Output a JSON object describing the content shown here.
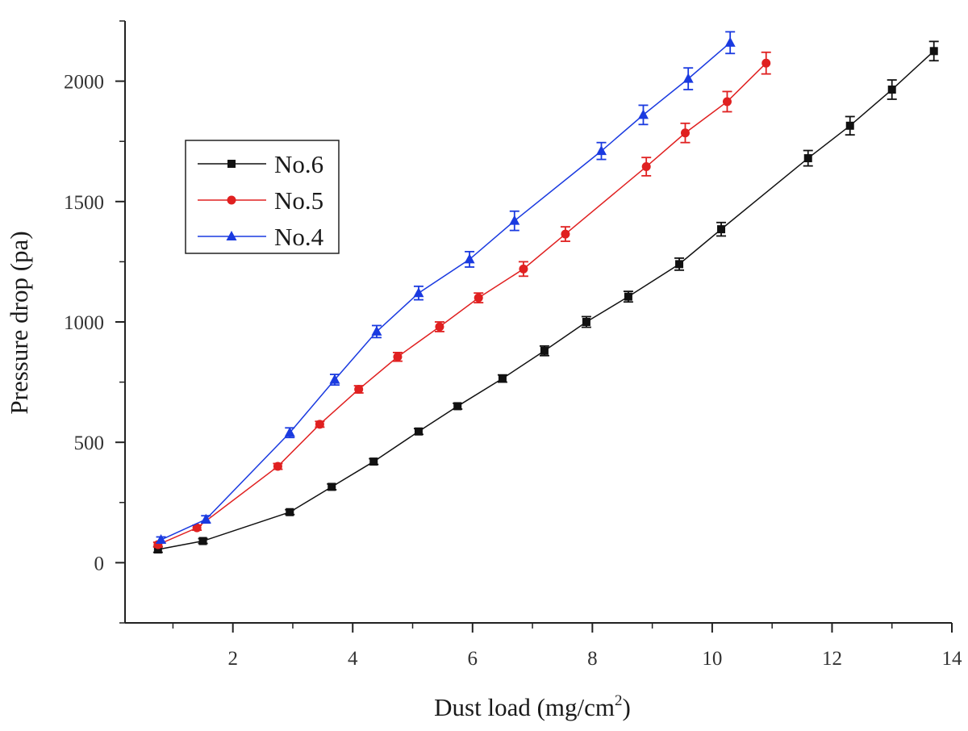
{
  "chart_data": {
    "type": "line",
    "title": "",
    "xlabel_main": "Dust load (mg/cm",
    "xlabel_sup": "2",
    "xlabel_end": ")",
    "ylabel": "Pressure drop (pa)",
    "xlim": [
      0.2,
      14
    ],
    "ylim": [
      -250,
      2250
    ],
    "xticks": [
      2,
      4,
      6,
      8,
      10,
      12,
      14
    ],
    "yticks": [
      0,
      500,
      1000,
      1500,
      2000
    ],
    "grid": false,
    "legend_position": "upper-left",
    "series": [
      {
        "name": "No.6",
        "color": "#111111",
        "marker": "square",
        "x": [
          0.75,
          1.5,
          2.95,
          3.65,
          4.35,
          5.1,
          5.75,
          6.5,
          7.2,
          7.9,
          8.6,
          9.45,
          10.15,
          11.6,
          12.3,
          13.0,
          13.7
        ],
        "y": [
          55,
          90,
          210,
          315,
          420,
          545,
          650,
          765,
          880,
          1000,
          1105,
          1240,
          1385,
          1680,
          1815,
          1965,
          2125
        ],
        "err": [
          12,
          10,
          10,
          12,
          12,
          12,
          12,
          15,
          20,
          22,
          22,
          25,
          28,
          32,
          38,
          40,
          40
        ]
      },
      {
        "name": "No.5",
        "color": "#e02020",
        "marker": "circle",
        "x": [
          0.75,
          1.4,
          2.75,
          3.45,
          4.1,
          4.75,
          5.45,
          6.1,
          6.85,
          7.55,
          8.9,
          9.55,
          10.25,
          10.9
        ],
        "y": [
          75,
          145,
          400,
          575,
          720,
          855,
          980,
          1100,
          1220,
          1365,
          1645,
          1785,
          1915,
          2075
        ],
        "err": [
          10,
          10,
          12,
          12,
          15,
          18,
          20,
          20,
          30,
          30,
          38,
          40,
          42,
          45
        ]
      },
      {
        "name": "No.4",
        "color": "#1a3ae0",
        "marker": "triangle",
        "x": [
          0.8,
          1.55,
          2.95,
          3.7,
          4.4,
          5.1,
          5.95,
          6.7,
          8.15,
          8.85,
          9.6,
          10.3
        ],
        "y": [
          95,
          180,
          540,
          760,
          960,
          1120,
          1260,
          1420,
          1710,
          1860,
          2010,
          2160
        ],
        "err": [
          12,
          15,
          20,
          22,
          25,
          28,
          32,
          40,
          35,
          40,
          45,
          45
        ]
      }
    ]
  }
}
